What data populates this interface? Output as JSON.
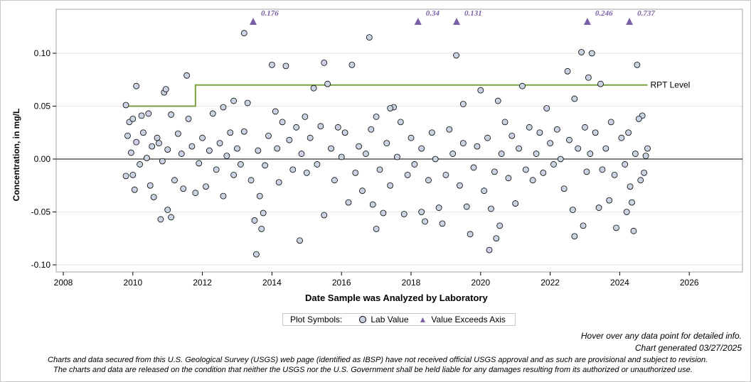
{
  "chart_data": {
    "type": "scatter",
    "xlabel": "Date Sample was Analyzed by Laboratory",
    "ylabel": "Concentration, in mg/L",
    "xlim": [
      2008,
      2027.5
    ],
    "ylim": [
      -0.11,
      0.145
    ],
    "xticks": [
      "2008",
      "2010",
      "2012",
      "2014",
      "2016",
      "2018",
      "2020",
      "2022",
      "2024",
      "2026"
    ],
    "yticks": [
      "0.10",
      "0.05",
      "0.00",
      "-0.05",
      "-0.10"
    ],
    "grid": "horizontal",
    "reference_line": {
      "label": "RPT Level",
      "color": "#7aa23f",
      "segments": [
        [
          2009.8,
          2011.8,
          0.05
        ],
        [
          2011.8,
          2024.8,
          0.07
        ]
      ]
    },
    "exceeds_axis": [
      {
        "x": 2013.46,
        "label": "0.176"
      },
      {
        "x": 2018.2,
        "label": "0.34"
      },
      {
        "x": 2019.31,
        "label": "0.131"
      },
      {
        "x": 2023.07,
        "label": "0.246"
      },
      {
        "x": 2024.28,
        "label": "0.737"
      }
    ],
    "colors": {
      "point_fill": "#c9d3e3",
      "point_stroke": "#000000",
      "triangle": "#7b5fa6",
      "zero_line": "#555555"
    },
    "points": [
      [
        2009.8,
        0.051
      ],
      [
        2009.8,
        -0.016
      ],
      [
        2010.1,
        0.069
      ],
      [
        2010.0,
        -0.015
      ],
      [
        2010.05,
        -0.029
      ],
      [
        2010.9,
        0.063
      ],
      [
        2010.95,
        0.066
      ],
      [
        2010.8,
        -0.057
      ],
      [
        2011.1,
        -0.055
      ],
      [
        2011.0,
        -0.048
      ],
      [
        2011.55,
        0.079
      ],
      [
        2011.8,
        -0.032
      ],
      [
        2012.6,
        0.049
      ],
      [
        2012.9,
        0.055
      ],
      [
        2013.2,
        0.119
      ],
      [
        2013.3,
        0.053
      ],
      [
        2013.5,
        -0.058
      ],
      [
        2013.55,
        -0.09
      ],
      [
        2013.7,
        -0.066
      ],
      [
        2013.75,
        -0.051
      ],
      [
        2014.0,
        0.089
      ],
      [
        2014.4,
        0.088
      ],
      [
        2014.8,
        -0.077
      ],
      [
        2015.2,
        0.067
      ],
      [
        2015.5,
        0.091
      ],
      [
        2015.6,
        0.071
      ],
      [
        2015.5,
        -0.053
      ],
      [
        2016.2,
        -0.041
      ],
      [
        2016.3,
        0.089
      ],
      [
        2016.8,
        0.115
      ],
      [
        2016.9,
        -0.043
      ],
      [
        2017.0,
        -0.066
      ],
      [
        2017.2,
        -0.051
      ],
      [
        2017.5,
        0.049
      ],
      [
        2017.4,
        0.048
      ],
      [
        2017.8,
        -0.052
      ],
      [
        2018.4,
        -0.059
      ],
      [
        2018.3,
        -0.05
      ],
      [
        2018.8,
        -0.046
      ],
      [
        2018.9,
        -0.061
      ],
      [
        2019.3,
        0.098
      ],
      [
        2019.5,
        0.052
      ],
      [
        2019.6,
        -0.045
      ],
      [
        2019.7,
        -0.071
      ],
      [
        2020.0,
        0.065
      ],
      [
        2020.25,
        -0.086
      ],
      [
        2020.5,
        0.055
      ],
      [
        2020.45,
        -0.075
      ],
      [
        2020.55,
        -0.063
      ],
      [
        2020.3,
        -0.047
      ],
      [
        2021.2,
        0.069
      ],
      [
        2021.0,
        -0.042
      ],
      [
        2021.9,
        0.048
      ],
      [
        2022.5,
        0.083
      ],
      [
        2022.7,
        0.057
      ],
      [
        2022.7,
        -0.073
      ],
      [
        2022.65,
        -0.048
      ],
      [
        2022.95,
        -0.063
      ],
      [
        2022.9,
        0.101
      ],
      [
        2023.1,
        0.077
      ],
      [
        2023.2,
        0.1
      ],
      [
        2023.45,
        0.071
      ],
      [
        2023.4,
        -0.046
      ],
      [
        2023.7,
        -0.039
      ],
      [
        2023.9,
        -0.065
      ],
      [
        2024.35,
        -0.041
      ],
      [
        2024.4,
        -0.068
      ],
      [
        2024.5,
        0.089
      ],
      [
        2024.2,
        -0.05
      ],
      [
        2024.65,
        0.041
      ],
      [
        2024.8,
        0.01
      ],
      [
        2009.85,
        0.022
      ],
      [
        2009.9,
        0.035
      ],
      [
        2009.95,
        0.006
      ],
      [
        2010.0,
        0.038
      ],
      [
        2010.1,
        0.016
      ],
      [
        2010.2,
        -0.005
      ],
      [
        2010.25,
        0.041
      ],
      [
        2010.3,
        0.025
      ],
      [
        2010.4,
        0.001
      ],
      [
        2010.45,
        0.043
      ],
      [
        2010.5,
        -0.025
      ],
      [
        2010.55,
        0.012
      ],
      [
        2010.6,
        -0.036
      ],
      [
        2010.7,
        0.02
      ],
      [
        2010.75,
        0.015
      ],
      [
        2010.85,
        -0.002
      ],
      [
        2011.0,
        0.009
      ],
      [
        2011.1,
        0.042
      ],
      [
        2011.2,
        -0.02
      ],
      [
        2011.3,
        0.024
      ],
      [
        2011.4,
        0.005
      ],
      [
        2011.45,
        -0.028
      ],
      [
        2011.6,
        0.038
      ],
      [
        2011.7,
        0.012
      ],
      [
        2011.9,
        -0.004
      ],
      [
        2012.0,
        0.02
      ],
      [
        2012.1,
        -0.026
      ],
      [
        2012.2,
        0.008
      ],
      [
        2012.3,
        0.043
      ],
      [
        2012.4,
        -0.01
      ],
      [
        2012.5,
        0.015
      ],
      [
        2012.6,
        -0.035
      ],
      [
        2012.7,
        0.003
      ],
      [
        2012.8,
        0.025
      ],
      [
        2012.9,
        -0.015
      ],
      [
        2013.0,
        0.01
      ],
      [
        2013.1,
        -0.005
      ],
      [
        2013.2,
        0.026
      ],
      [
        2013.4,
        -0.02
      ],
      [
        2013.6,
        0.008
      ],
      [
        2013.65,
        -0.035
      ],
      [
        2013.8,
        -0.006
      ],
      [
        2013.9,
        0.022
      ],
      [
        2014.1,
        0.045
      ],
      [
        2014.15,
        0.01
      ],
      [
        2014.2,
        -0.022
      ],
      [
        2014.3,
        0.035
      ],
      [
        2014.5,
        0.018
      ],
      [
        2014.6,
        -0.01
      ],
      [
        2014.7,
        0.03
      ],
      [
        2014.85,
        0.005
      ],
      [
        2014.95,
        0.04
      ],
      [
        2015.0,
        -0.013
      ],
      [
        2015.1,
        0.02
      ],
      [
        2015.3,
        -0.005
      ],
      [
        2015.4,
        0.031
      ],
      [
        2015.7,
        0.01
      ],
      [
        2015.8,
        -0.02
      ],
      [
        2015.9,
        0.03
      ],
      [
        2016.0,
        0.002
      ],
      [
        2016.1,
        0.025
      ],
      [
        2016.4,
        -0.013
      ],
      [
        2016.5,
        0.012
      ],
      [
        2016.6,
        -0.03
      ],
      [
        2016.7,
        0.005
      ],
      [
        2016.85,
        0.028
      ],
      [
        2017.0,
        0.04
      ],
      [
        2017.1,
        -0.01
      ],
      [
        2017.3,
        0.015
      ],
      [
        2017.4,
        -0.025
      ],
      [
        2017.6,
        0.002
      ],
      [
        2017.7,
        0.035
      ],
      [
        2017.9,
        -0.015
      ],
      [
        2018.0,
        0.02
      ],
      [
        2018.1,
        -0.005
      ],
      [
        2018.3,
        0.01
      ],
      [
        2018.5,
        -0.02
      ],
      [
        2018.6,
        0.025
      ],
      [
        2018.7,
        0.0
      ],
      [
        2019.0,
        -0.015
      ],
      [
        2019.1,
        0.028
      ],
      [
        2019.2,
        0.005
      ],
      [
        2019.4,
        -0.025
      ],
      [
        2019.5,
        0.015
      ],
      [
        2019.8,
        -0.008
      ],
      [
        2019.9,
        0.012
      ],
      [
        2020.1,
        -0.03
      ],
      [
        2020.2,
        0.02
      ],
      [
        2020.4,
        -0.012
      ],
      [
        2020.6,
        0.005
      ],
      [
        2020.7,
        0.035
      ],
      [
        2020.8,
        -0.018
      ],
      [
        2020.9,
        0.022
      ],
      [
        2021.1,
        0.01
      ],
      [
        2021.3,
        -0.01
      ],
      [
        2021.4,
        0.03
      ],
      [
        2021.5,
        -0.02
      ],
      [
        2021.6,
        0.005
      ],
      [
        2021.7,
        0.025
      ],
      [
        2021.8,
        -0.013
      ],
      [
        2022.0,
        0.015
      ],
      [
        2022.1,
        -0.005
      ],
      [
        2022.2,
        0.028
      ],
      [
        2022.3,
        0.0
      ],
      [
        2022.4,
        -0.028
      ],
      [
        2022.55,
        0.018
      ],
      [
        2022.8,
        0.01
      ],
      [
        2023.0,
        0.03
      ],
      [
        2023.05,
        -0.012
      ],
      [
        2023.15,
        0.005
      ],
      [
        2023.3,
        0.025
      ],
      [
        2023.5,
        -0.01
      ],
      [
        2023.6,
        0.01
      ],
      [
        2023.75,
        0.035
      ],
      [
        2023.85,
        -0.015
      ],
      [
        2024.05,
        0.02
      ],
      [
        2024.15,
        -0.005
      ],
      [
        2024.25,
        0.025
      ],
      [
        2024.3,
        -0.026
      ],
      [
        2024.45,
        0.005
      ],
      [
        2024.55,
        0.038
      ],
      [
        2024.6,
        -0.02
      ],
      [
        2024.7,
        -0.013
      ],
      [
        2024.75,
        0.003
      ]
    ]
  },
  "legend": {
    "title": "Plot Symbols:",
    "items": [
      "Lab Value",
      "Value Exceeds Axis"
    ]
  },
  "footer": {
    "hover": "Hover over any data point for detailed info.",
    "generated": "Chart generated 03/27/2025",
    "disclaimer1": "Charts and data secured from this U.S. Geological Survey (USGS) web page (identified as IBSP) have not received official USGS approval and as such are provisional and subject to revision.",
    "disclaimer2": "The charts and data are released on the condition that neither the USGS nor the U.S. Government shall be held liable for any damages resulting from its authorized or unauthorized use."
  }
}
